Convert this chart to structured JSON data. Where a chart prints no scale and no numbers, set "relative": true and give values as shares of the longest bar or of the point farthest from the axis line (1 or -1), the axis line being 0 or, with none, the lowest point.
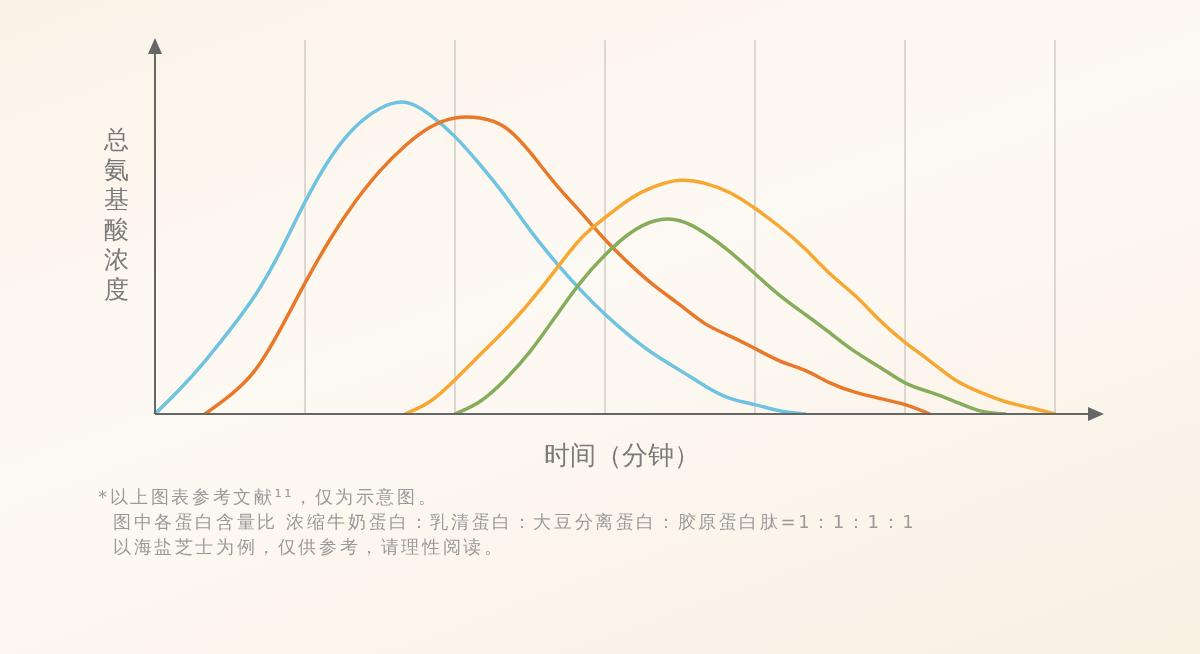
{
  "chart_data": {
    "type": "line",
    "relative": true,
    "xlabel": "时间（分钟）",
    "ylabel": "总氨基酸浓度",
    "annotations": [
      "*以上图表参考文献¹¹，仅为示意图。",
      "图中各蛋白含量比 浓缩牛奶蛋白：乳清蛋白：大豆分离蛋白：胶原蛋白肽=1：1：1：1",
      "以海盐芝士为例，仅供参考，请理性阅读。"
    ],
    "categories": [
      null,
      null,
      null,
      null,
      null,
      null,
      null,
      null,
      null,
      null,
      null,
      null,
      null,
      null,
      null,
      null,
      null,
      null,
      null,
      null,
      null,
      null,
      null,
      null,
      null,
      null,
      null,
      null,
      null,
      null,
      null,
      null,
      null,
      null,
      null,
      null,
      null
    ],
    "grid": "x",
    "series": [
      {
        "color": "#6ec3e0",
        "values": [
          0,
          0.08,
          0.17,
          0.27,
          0.38,
          0.52,
          0.68,
          0.82,
          0.92,
          0.98,
          1,
          0.96,
          0.89,
          0.8,
          0.7,
          0.59,
          0.49,
          0.4,
          0.32,
          0.25,
          0.19,
          0.14,
          0.09,
          0.05,
          0.03,
          0.01,
          0,
          null,
          null,
          null,
          null,
          null,
          null,
          null,
          null,
          null,
          null
        ]
      },
      {
        "color": "#e8792b",
        "values": [
          null,
          null,
          0,
          0.06,
          0.14,
          0.27,
          0.42,
          0.56,
          0.68,
          0.78,
          0.86,
          0.92,
          0.95,
          0.95,
          0.92,
          0.84,
          0.74,
          0.65,
          0.56,
          0.48,
          0.41,
          0.35,
          0.29,
          0.25,
          0.21,
          0.17,
          0.14,
          0.1,
          0.07,
          0.05,
          0.03,
          0,
          null,
          null,
          null,
          null,
          null
        ]
      },
      {
        "color": "#f6a832",
        "values": [
          null,
          null,
          null,
          null,
          null,
          null,
          null,
          null,
          null,
          null,
          0,
          0.04,
          0.11,
          0.19,
          0.27,
          0.36,
          0.46,
          0.56,
          0.63,
          0.69,
          0.73,
          0.75,
          0.74,
          0.71,
          0.66,
          0.6,
          0.53,
          0.45,
          0.38,
          0.3,
          0.23,
          0.17,
          0.11,
          0.07,
          0.04,
          0.02,
          0
        ]
      },
      {
        "color": "#86ad5c",
        "values": [
          null,
          null,
          null,
          null,
          null,
          null,
          null,
          null,
          null,
          null,
          null,
          null,
          0,
          0.04,
          0.11,
          0.2,
          0.31,
          0.42,
          0.51,
          0.58,
          0.62,
          0.62,
          0.58,
          0.52,
          0.45,
          0.38,
          0.32,
          0.26,
          0.2,
          0.15,
          0.1,
          0.07,
          0.04,
          0.01,
          0,
          null,
          null
        ]
      }
    ]
  }
}
